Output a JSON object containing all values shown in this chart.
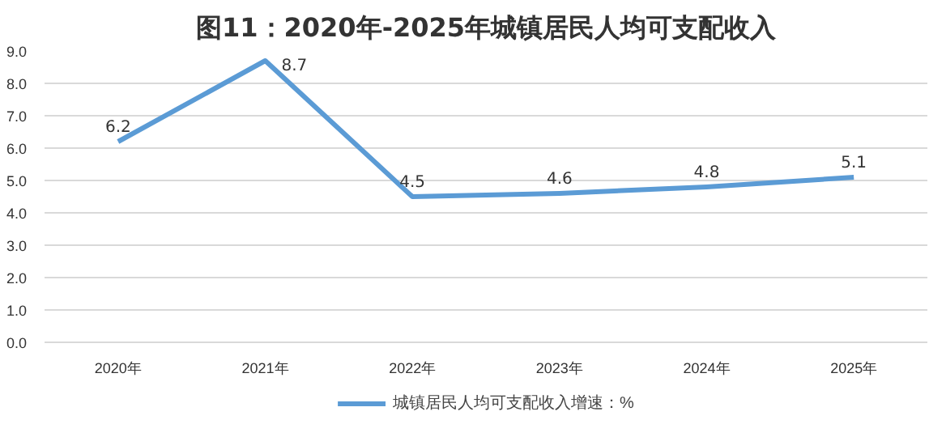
{
  "chart_data": {
    "type": "line",
    "title": "图11：2020年-2025年城镇居民人均可支配收入",
    "categories": [
      "2020年",
      "2021年",
      "2022年",
      "2023年",
      "2024年",
      "2025年"
    ],
    "series": [
      {
        "name": "城镇居民人均可支配收入增速：%",
        "color": "#5b9bd5",
        "values": [
          6.2,
          8.7,
          4.5,
          4.6,
          4.8,
          5.1
        ]
      }
    ],
    "ylim": [
      0,
      9
    ],
    "yticks": [
      {
        "value": 0,
        "label": "0.0"
      },
      {
        "value": 1,
        "label": "1.0"
      },
      {
        "value": 2,
        "label": "2.0"
      },
      {
        "value": 3,
        "label": "3.0"
      },
      {
        "value": 4,
        "label": "4.0"
      },
      {
        "value": 5,
        "label": "5.0"
      },
      {
        "value": 6,
        "label": "6.0"
      },
      {
        "value": 7,
        "label": "7.0"
      },
      {
        "value": 8,
        "label": "8.0"
      },
      {
        "value": 9,
        "label": "9.0"
      }
    ],
    "grid": "y",
    "legend": "bottom",
    "data_labels": true,
    "marker": "none",
    "line_style": "solid"
  }
}
